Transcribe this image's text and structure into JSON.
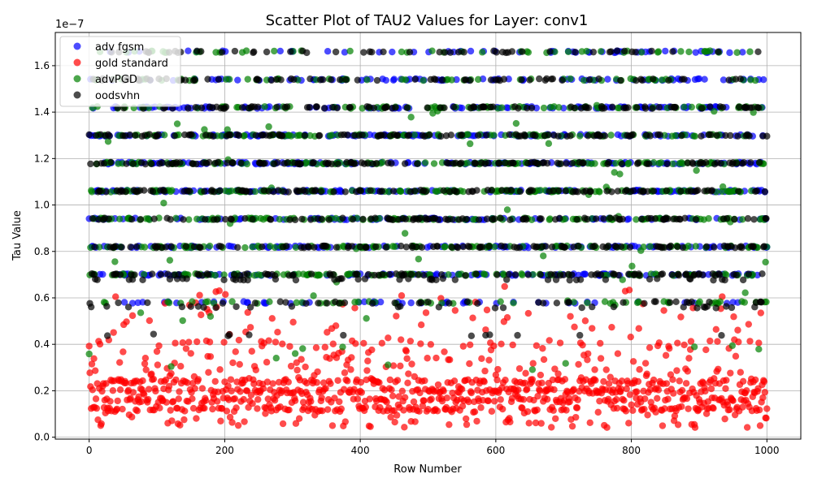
{
  "chart_data": {
    "type": "scatter",
    "title": "Scatter Plot of TAU2 Values for Layer: conv1",
    "xlabel": "Row Number",
    "ylabel": "Tau Value",
    "y_exponent_label": "1e−7",
    "xlim": [
      -50,
      1050
    ],
    "ylim": [
      -0.0083,
      1.743
    ],
    "x_ticks": [
      0,
      200,
      400,
      600,
      800,
      1000
    ],
    "x_tick_labels": [
      "0",
      "200",
      "400",
      "600",
      "800",
      "1000"
    ],
    "y_ticks": [
      0.0,
      0.2,
      0.4,
      0.6,
      0.8,
      1.0,
      1.2,
      1.4,
      1.6
    ],
    "y_tick_labels": [
      "0.0",
      "0.2",
      "0.4",
      "0.6",
      "0.8",
      "1.0",
      "1.2",
      "1.4",
      "1.6"
    ],
    "grid": true,
    "legend_position": "top-left",
    "n_rows": 1000,
    "series": [
      {
        "name": "adv fgsm",
        "color": "#0000ff",
        "levels": [
          0.58,
          0.7,
          0.82,
          0.94,
          1.06,
          1.18,
          1.3,
          1.42,
          1.54,
          1.66
        ],
        "weights": [
          0.04,
          0.12,
          0.12,
          0.11,
          0.13,
          0.14,
          0.12,
          0.1,
          0.07,
          0.05
        ]
      },
      {
        "name": "gold standard",
        "color": "#ff0000",
        "cluster_values": [
          0.12,
          0.16,
          0.2,
          0.24
        ],
        "range": [
          0.04,
          0.66
        ]
      },
      {
        "name": "advPGD",
        "color": "#008000",
        "levels": [
          0.58,
          0.7,
          0.82,
          0.94,
          1.06,
          1.18,
          1.3,
          1.42,
          1.54,
          1.66
        ],
        "weights": [
          0.05,
          0.12,
          0.12,
          0.11,
          0.13,
          0.13,
          0.12,
          0.1,
          0.07,
          0.05
        ],
        "scattered_range": [
          0.23,
          1.43
        ]
      },
      {
        "name": "oodsvhn",
        "color": "#000000",
        "levels": [
          0.44,
          0.56,
          0.58,
          0.68,
          0.7,
          0.82,
          0.94,
          1.06,
          1.18,
          1.3,
          1.42,
          1.54,
          1.66
        ],
        "weights": [
          0.01,
          0.03,
          0.04,
          0.05,
          0.09,
          0.11,
          0.11,
          0.12,
          0.12,
          0.11,
          0.09,
          0.07,
          0.05
        ]
      }
    ]
  }
}
